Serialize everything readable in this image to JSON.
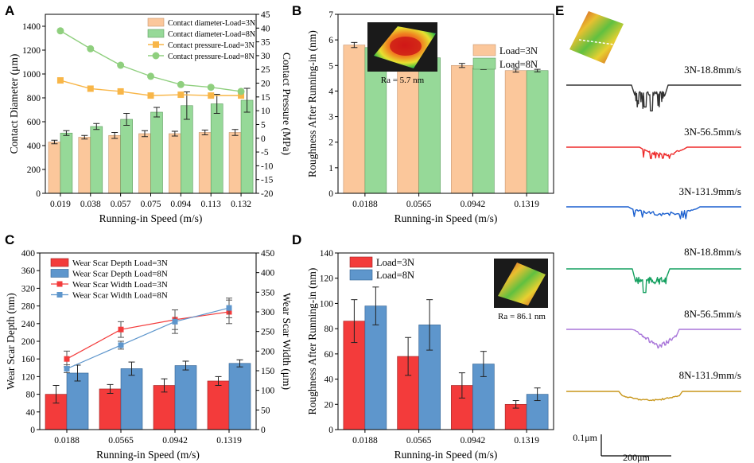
{
  "colors": {
    "bar_3n_a": "#fbc79b",
    "bar_8n_a": "#96d998",
    "line_3n_a": "#f8b648",
    "line_8n_a": "#8fcf7e",
    "bar_3n_c": "#f33b3b",
    "bar_8n_c": "#5e96cc",
    "line_3n_c": "#f33b3b",
    "line_8n_c": "#5e96cc",
    "profile_colors": [
      "#333333",
      "#ee2a2a",
      "#1a5fcf",
      "#15a060",
      "#a875d9",
      "#c8961a"
    ]
  },
  "panels": {
    "a": {
      "letter": "A"
    },
    "b": {
      "letter": "B"
    },
    "c": {
      "letter": "C"
    },
    "d": {
      "letter": "D"
    },
    "e": {
      "letter": "E"
    }
  },
  "chart_data": [
    {
      "id": "A",
      "type": "bar",
      "xlabel": "Running-in Speed (m/s)",
      "ylabel": "Contact Diameter (μm)",
      "ylabel2": "Contact Pressure (MPa)",
      "categories": [
        "0.019",
        "0.038",
        "0.057",
        "0.075",
        "0.094",
        "0.113",
        "0.132"
      ],
      "ylim": [
        0,
        1500
      ],
      "yticks": [
        "0",
        "200",
        "400",
        "600",
        "800",
        "1000",
        "1200",
        "1400"
      ],
      "ylim2": [
        -20,
        45
      ],
      "yticks2": [
        "-20",
        "-15",
        "-10",
        "-5",
        "0",
        "5",
        "10",
        "15",
        "20",
        "25",
        "30",
        "35",
        "40",
        "45"
      ],
      "series": [
        {
          "name": "Contact diameter-Load=3N",
          "kind": "bar",
          "values": [
            430,
            470,
            485,
            500,
            500,
            510,
            510
          ],
          "errors": [
            15,
            15,
            25,
            25,
            20,
            20,
            25
          ]
        },
        {
          "name": "Contact diameter-Load=8N",
          "kind": "bar",
          "values": [
            505,
            560,
            620,
            680,
            735,
            750,
            780
          ],
          "errors": [
            20,
            25,
            50,
            40,
            115,
            80,
            100
          ]
        },
        {
          "name": "Contact pressure-Load=3N",
          "kind": "line",
          "axis": "right",
          "marker": "square",
          "values": [
            21,
            18,
            17,
            15.5,
            15.8,
            15.5,
            15.5
          ]
        },
        {
          "name": "Contact pressure-Load=8N",
          "kind": "line",
          "axis": "right",
          "marker": "circle",
          "values": [
            39,
            32.5,
            26.5,
            22.5,
            19.5,
            18.5,
            17
          ]
        }
      ]
    },
    {
      "id": "B",
      "type": "bar",
      "xlabel": "Running-in Speed (m/s)",
      "ylabel": "Roughness After Running-in (nm)",
      "categories": [
        "0.0188",
        "0.0565",
        "0.0942",
        "0.1319"
      ],
      "ylim": [
        0,
        7
      ],
      "yticks": [
        "0",
        "1",
        "2",
        "3",
        "4",
        "5",
        "6",
        "7"
      ],
      "inset_label": "Ra = 5.7 nm",
      "series": [
        {
          "name": "Load=3N",
          "values": [
            5.8,
            5.1,
            5.0,
            4.8
          ],
          "errors": [
            0.1,
            0.1,
            0.08,
            0.06
          ]
        },
        {
          "name": "Load=8N",
          "values": [
            5.7,
            5.3,
            4.9,
            4.8
          ],
          "errors": [
            0.1,
            0.1,
            0.06,
            0.05
          ]
        }
      ]
    },
    {
      "id": "C",
      "type": "bar",
      "xlabel": "Running-in Speed (m/s)",
      "ylabel": "Wear Scar Depth (nm)",
      "ylabel2": "Wear Scar Width (μm)",
      "categories": [
        "0.0188",
        "0.0565",
        "0.0942",
        "0.1319"
      ],
      "ylim": [
        0,
        400
      ],
      "yticks": [
        "0",
        "40",
        "80",
        "120",
        "160",
        "200",
        "240",
        "280",
        "320",
        "360",
        "400"
      ],
      "ylim2": [
        0,
        450
      ],
      "yticks2": [
        "0",
        "50",
        "100",
        "150",
        "200",
        "250",
        "300",
        "350",
        "400",
        "450"
      ],
      "series": [
        {
          "name": "Wear Scar Depth Load=3N",
          "kind": "bar",
          "values": [
            80,
            92,
            100,
            110
          ],
          "errors": [
            20,
            10,
            15,
            10
          ]
        },
        {
          "name": "Wear Scar Depth Load=8N",
          "kind": "bar",
          "values": [
            128,
            138,
            145,
            150
          ],
          "errors": [
            18,
            15,
            10,
            8
          ]
        },
        {
          "name": "Wear Scar Width Load=3N",
          "kind": "line",
          "axis": "right",
          "values": [
            180,
            255,
            280,
            300
          ],
          "errors": [
            20,
            20,
            25,
            30
          ]
        },
        {
          "name": "Wear Scar Width Load=8N",
          "kind": "line",
          "axis": "right",
          "values": [
            155,
            215,
            275,
            310
          ],
          "errors": [
            10,
            10,
            30,
            25
          ]
        }
      ]
    },
    {
      "id": "D",
      "type": "bar",
      "xlabel": "Running-in Speed (m/s)",
      "ylabel": "Roughness After Running-in (nm)",
      "categories": [
        "0.0188",
        "0.0565",
        "0.0942",
        "0.1319"
      ],
      "ylim": [
        0,
        140
      ],
      "yticks": [
        "0",
        "20",
        "40",
        "60",
        "80",
        "100",
        "120",
        "140"
      ],
      "inset_label": "Ra = 86.1 nm",
      "series": [
        {
          "name": "Load=3N",
          "values": [
            86,
            58,
            35,
            20
          ],
          "errors": [
            17,
            15,
            10,
            3
          ]
        },
        {
          "name": "Load=8N",
          "values": [
            98,
            83,
            52,
            28
          ],
          "errors": [
            15,
            20,
            10,
            5
          ]
        }
      ]
    },
    {
      "id": "E",
      "type": "line",
      "profiles": [
        {
          "label": "3N-18.8mm/s",
          "depth_um": 0.12
        },
        {
          "label": "3N-56.5mm/s",
          "depth_um": 0.06
        },
        {
          "label": "3N-131.9mm/s",
          "depth_um": 0.06
        },
        {
          "label": "8N-18.8mm/s",
          "depth_um": 0.11
        },
        {
          "label": "8N-56.5mm/s",
          "depth_um": 0.1
        },
        {
          "label": "8N-131.9mm/s",
          "depth_um": 0.045
        }
      ],
      "scale_y_label": "0.1μm",
      "scale_x_label": "200μm"
    }
  ]
}
